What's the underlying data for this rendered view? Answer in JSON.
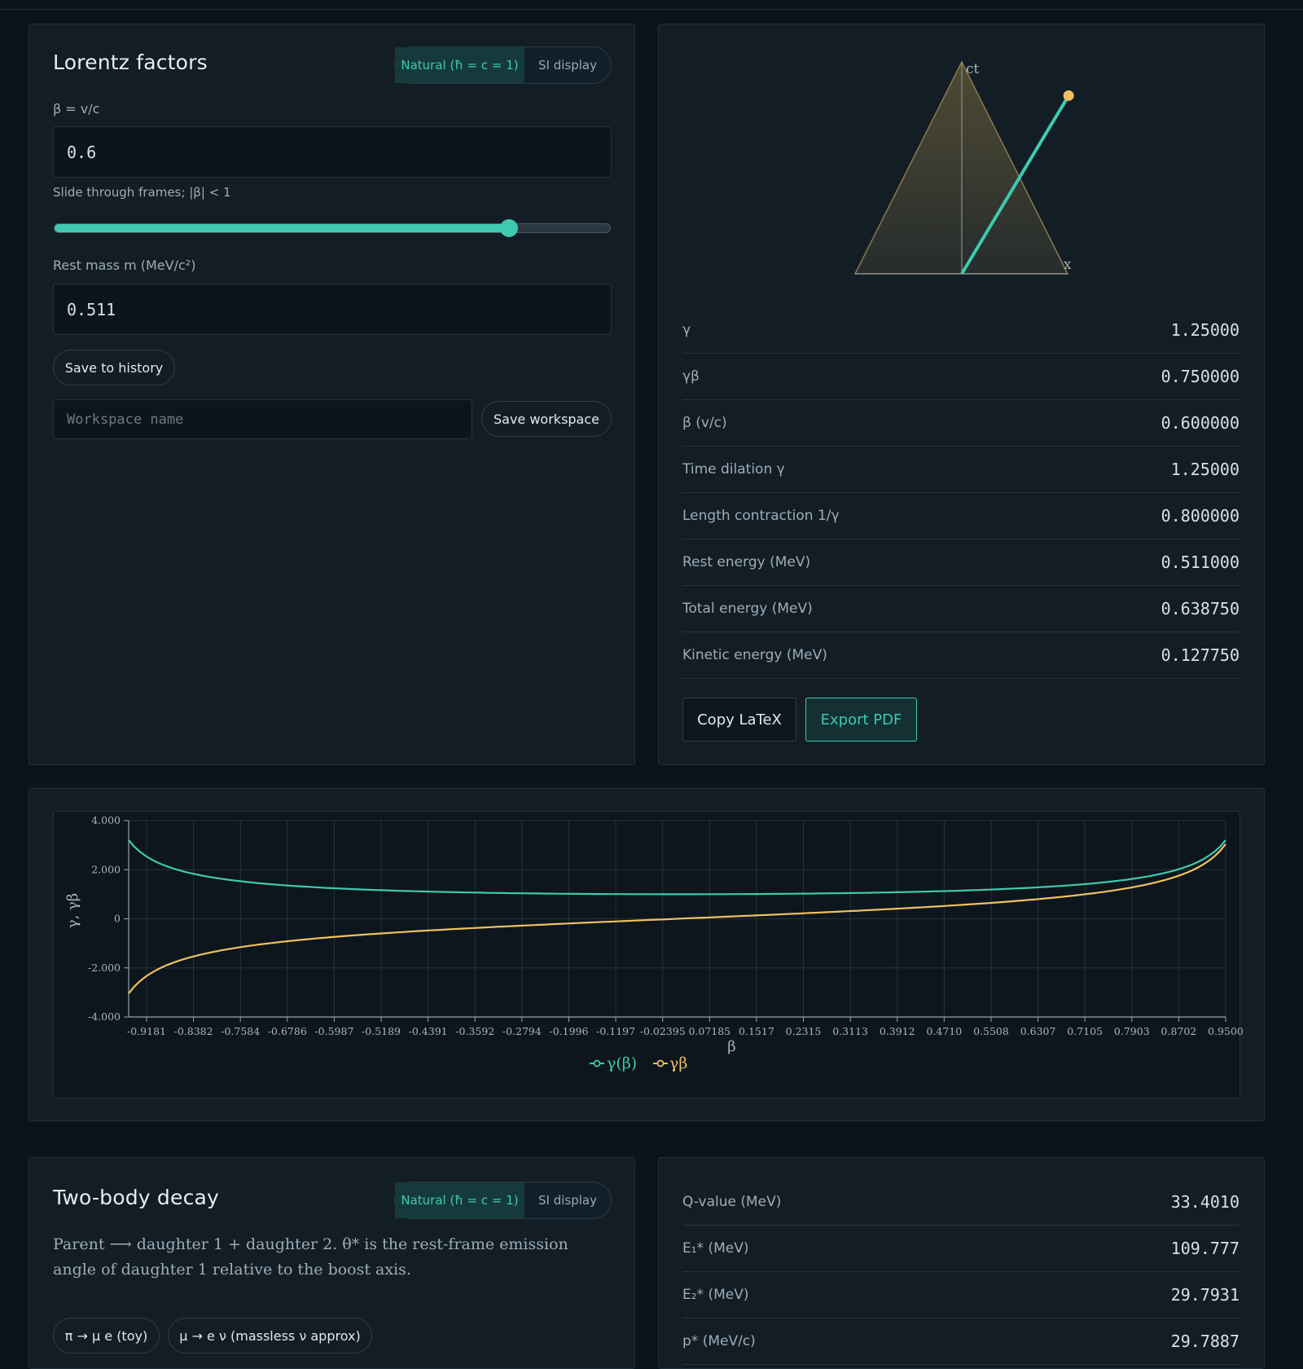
{
  "lorentz": {
    "title": "Lorentz factors",
    "units": {
      "natural": "Natural (ħ = c = 1)",
      "si": "SI display",
      "selected": "natural"
    },
    "beta_label": "β = v/c",
    "beta_value": "0.6",
    "slider_hint": "Slide through frames; |β| < 1",
    "slider": {
      "min": -0.95,
      "max": 0.95,
      "value": 0.6
    },
    "mass_label": "Rest mass m (MeV/c²)",
    "mass_value": "0.511",
    "save_history": "Save to history",
    "workspace_placeholder": "Workspace name",
    "save_workspace": "Save workspace"
  },
  "diagram": {
    "ct_label": "ct",
    "x_label": "x",
    "beta": 0.6
  },
  "results": {
    "rows": [
      {
        "key": "γ",
        "value": "1.25000"
      },
      {
        "key": "γβ",
        "value": "0.750000"
      },
      {
        "key": "β (v/c)",
        "value": "0.600000"
      },
      {
        "key": "Time dilation γ",
        "value": "1.25000"
      },
      {
        "key": "Length contraction 1/γ",
        "value": "0.800000"
      },
      {
        "key": "Rest energy (MeV)",
        "value": "0.511000"
      },
      {
        "key": "Total energy (MeV)",
        "value": "0.638750"
      },
      {
        "key": "Kinetic energy (MeV)",
        "value": "0.127750"
      }
    ],
    "copy_latex": "Copy LaTeX",
    "export_pdf": "Export PDF"
  },
  "chart_data": {
    "type": "line",
    "xlabel": "β",
    "ylabel": "γ, γβ",
    "xlim": [
      -0.95,
      0.95
    ],
    "ylim": [
      -4,
      4
    ],
    "yticks": [
      "4.000",
      "2.000",
      "0",
      "-2.000",
      "-4.000"
    ],
    "xticks": [
      "-0.9181",
      "-0.8382",
      "-0.7584",
      "-0.6786",
      "-0.5987",
      "-0.5189",
      "-0.4391",
      "-0.3592",
      "-0.2794",
      "-0.1996",
      "-0.1197",
      "-0.02395",
      "0.07185",
      "0.1517",
      "0.2315",
      "0.3113",
      "0.3912",
      "0.4710",
      "0.5508",
      "0.6307",
      "0.7105",
      "0.7903",
      "0.8702",
      "0.9500"
    ],
    "x": [
      -0.95,
      -0.9,
      -0.85,
      -0.8,
      -0.7,
      -0.6,
      -0.5,
      -0.4,
      -0.3,
      -0.2,
      -0.1,
      0,
      0.1,
      0.2,
      0.3,
      0.4,
      0.5,
      0.6,
      0.7,
      0.8,
      0.85,
      0.9,
      0.95
    ],
    "series": [
      {
        "name": "γ(β)",
        "color": "#3ec9b0",
        "values": [
          3.203,
          2.294,
          1.898,
          1.667,
          1.4,
          1.25,
          1.155,
          1.091,
          1.048,
          1.021,
          1.005,
          1.0,
          1.005,
          1.021,
          1.048,
          1.091,
          1.155,
          1.25,
          1.4,
          1.667,
          1.898,
          2.294,
          3.203
        ]
      },
      {
        "name": "γβ",
        "color": "#f0c060",
        "values": [
          -3.042,
          -2.065,
          -1.614,
          -1.333,
          -0.98,
          -0.75,
          -0.577,
          -0.436,
          -0.314,
          -0.204,
          -0.101,
          0.0,
          0.101,
          0.204,
          0.314,
          0.436,
          0.577,
          0.75,
          0.98,
          1.333,
          1.614,
          2.065,
          3.042
        ]
      }
    ],
    "grid": true,
    "legend": "bottom-center"
  },
  "decay": {
    "title": "Two-body decay",
    "units": {
      "natural": "Natural (ħ = c = 1)",
      "si": "SI display"
    },
    "description": "Parent ⟶ daughter 1 + daughter 2. θ* is the rest-frame emission angle of daughter 1 relative to the boost axis.",
    "presets": [
      "π → μ e (toy)",
      "μ → e ν (massless ν approx)"
    ],
    "rows": [
      {
        "key": "Q-value (MeV)",
        "value": "33.4010"
      },
      {
        "key": "E₁* (MeV)",
        "value": "109.777"
      },
      {
        "key": "E₂* (MeV)",
        "value": "29.7931"
      },
      {
        "key": "p* (MeV/c)",
        "value": "29.7887"
      }
    ]
  }
}
